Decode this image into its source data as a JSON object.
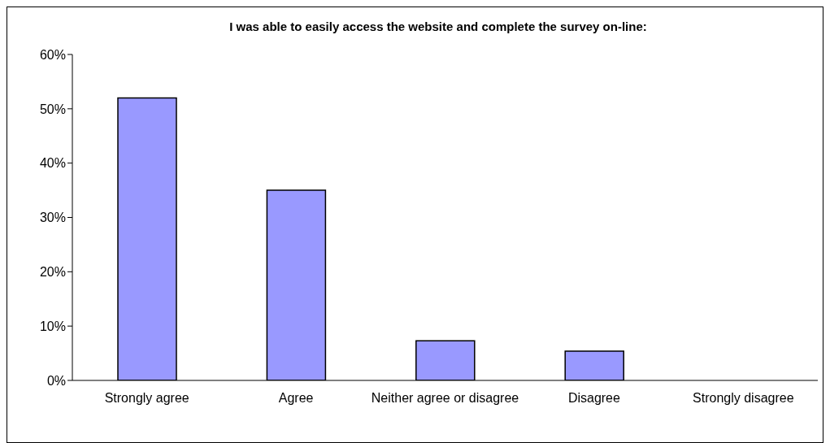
{
  "chart_data": {
    "type": "bar",
    "title": "I was able to easily access the website and complete the survey on-line:",
    "categories": [
      "Strongly agree",
      "Agree",
      "Neither agree or disagree",
      "Disagree",
      "Strongly disagree"
    ],
    "values": [
      52,
      35,
      7.3,
      5.4,
      0
    ],
    "color": "#9999ff",
    "ylim": [
      0,
      60
    ],
    "yticks": [
      {
        "value": 0,
        "label": "0%"
      },
      {
        "value": 10,
        "label": "10%"
      },
      {
        "value": 20,
        "label": "20%"
      },
      {
        "value": 30,
        "label": "30%"
      },
      {
        "value": 40,
        "label": "40%"
      },
      {
        "value": 50,
        "label": "50%"
      },
      {
        "value": 60,
        "label": "60%"
      }
    ],
    "grid": false,
    "legend": false
  }
}
